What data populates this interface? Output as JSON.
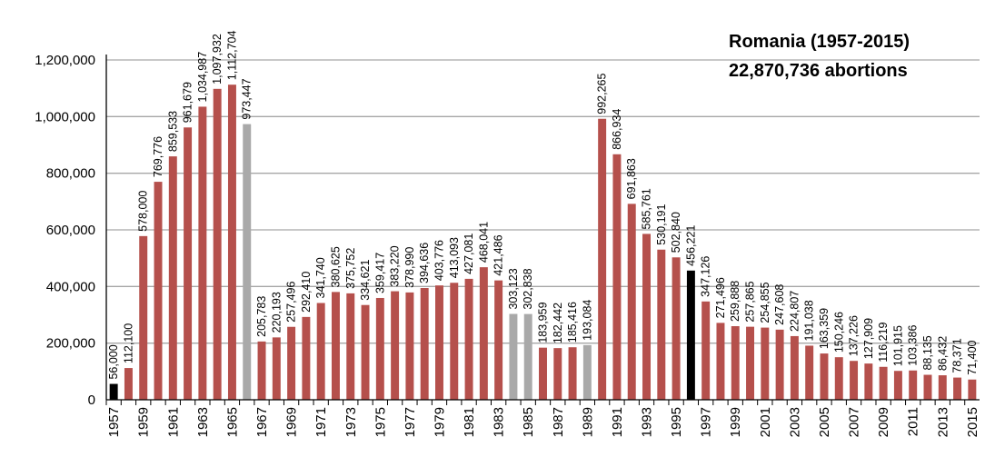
{
  "chart_data": {
    "type": "bar",
    "title": "Romania (1957-2015)",
    "subtitle": "22,870,736 abortions",
    "xlabel": "",
    "ylabel": "",
    "ylim": [
      0,
      1200000
    ],
    "yticks": [
      0,
      200000,
      400000,
      600000,
      800000,
      1000000,
      1200000
    ],
    "ytick_labels": [
      "0",
      "200,000",
      "400,000",
      "600,000",
      "800,000",
      "1,000,000",
      "1,200,000"
    ],
    "grid": true,
    "colors": {
      "default": "#b5504c",
      "gray": "#a9a9a9",
      "black": "#000000",
      "grid": "#a6a6a6",
      "axis": "#000000"
    },
    "categories": [
      "1957",
      "1958",
      "1959",
      "1960",
      "1961",
      "1962",
      "1963",
      "1964",
      "1965",
      "1966",
      "1967",
      "1968",
      "1969",
      "1970",
      "1971",
      "1972",
      "1973",
      "1974",
      "1975",
      "1976",
      "1977",
      "1978",
      "1979",
      "1980",
      "1981",
      "1982",
      "1983",
      "1984",
      "1985",
      "1986",
      "1987",
      "1988",
      "1989",
      "1990",
      "1991",
      "1992",
      "1993",
      "1994",
      "1995",
      "1996",
      "1997",
      "1998",
      "1999",
      "2000",
      "2001",
      "2002",
      "2003",
      "2004",
      "2005",
      "2006",
      "2007",
      "2008",
      "2009",
      "2010",
      "2011",
      "2012",
      "2013",
      "2014",
      "2015"
    ],
    "values": [
      56000,
      112100,
      578000,
      769776,
      859533,
      961679,
      1034987,
      1097932,
      1112704,
      973447,
      205783,
      220193,
      257496,
      292410,
      341740,
      380625,
      375752,
      334621,
      359417,
      383220,
      378990,
      394636,
      403776,
      413093,
      427081,
      468041,
      421486,
      303123,
      302838,
      183959,
      182442,
      185416,
      193084,
      992265,
      866934,
      691863,
      585761,
      530191,
      502840,
      456221,
      347126,
      271496,
      259888,
      257865,
      254855,
      247608,
      224807,
      191038,
      163359,
      150246,
      137226,
      127909,
      116219,
      101915,
      103386,
      88135,
      86432,
      78371,
      71400
    ],
    "value_labels": [
      "56,000",
      "112,100",
      "578,000",
      "769,776",
      "859,533",
      "961,679",
      "1,034,987",
      "1,097,932",
      "1,112,704",
      "973,447",
      "205,783",
      "220,193",
      "257,496",
      "292,410",
      "341,740",
      "380,625",
      "375,752",
      "334,621",
      "359,417",
      "383,220",
      "378,990",
      "394,636",
      "403,776",
      "413,093",
      "427,081",
      "468,041",
      "421,486",
      "303,123",
      "302,838",
      "183,959",
      "182,442",
      "185,416",
      "193,084",
      "992,265",
      "866,934",
      "691,863",
      "585,761",
      "530,191",
      "502,840",
      "456,221",
      "347,126",
      "271,496",
      "259,888",
      "257,865",
      "254,855",
      "247,608",
      "224,807",
      "191,038",
      "163,359",
      "150,246",
      "137,226",
      "127,909",
      "116,219",
      "101,915",
      "103,386",
      "88,135",
      "86,432",
      "78,371",
      "71,400"
    ],
    "x_tick_labels": [
      "1957",
      "",
      "1959",
      "",
      "1961",
      "",
      "1963",
      "",
      "1965",
      "",
      "1967",
      "",
      "1969",
      "",
      "1971",
      "",
      "1973",
      "",
      "1975",
      "",
      "1977",
      "",
      "1979",
      "",
      "1981",
      "",
      "1983",
      "",
      "1985",
      "",
      "1987",
      "",
      "1989",
      "",
      "1991",
      "",
      "1993",
      "",
      "1995",
      "",
      "1997",
      "",
      "1999",
      "",
      "2001",
      "",
      "2003",
      "",
      "2005",
      "",
      "2007",
      "",
      "2009",
      "",
      "2011",
      "",
      "2013",
      "",
      "2015"
    ],
    "bar_colors": [
      "black",
      "default",
      "default",
      "default",
      "default",
      "default",
      "default",
      "default",
      "default",
      "gray",
      "default",
      "default",
      "default",
      "default",
      "default",
      "default",
      "default",
      "default",
      "default",
      "default",
      "default",
      "default",
      "default",
      "default",
      "default",
      "default",
      "default",
      "gray",
      "gray",
      "default",
      "default",
      "default",
      "gray",
      "default",
      "default",
      "default",
      "default",
      "default",
      "default",
      "black",
      "default",
      "default",
      "default",
      "default",
      "default",
      "default",
      "default",
      "default",
      "default",
      "default",
      "default",
      "default",
      "default",
      "default",
      "default",
      "default",
      "default",
      "default",
      "default"
    ]
  }
}
